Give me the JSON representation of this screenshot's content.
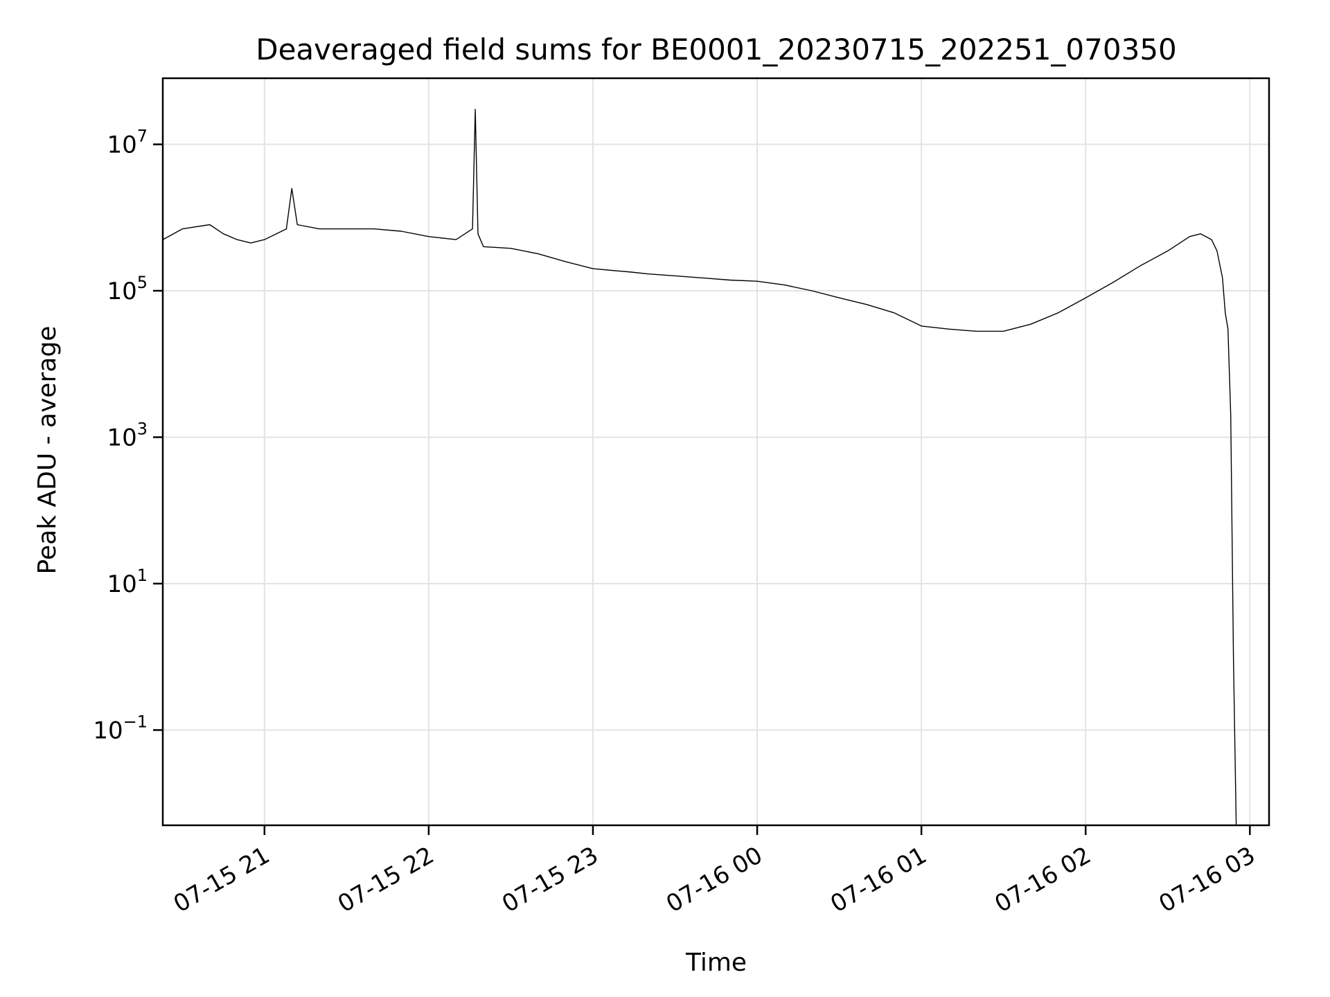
{
  "chart_data": {
    "type": "line",
    "title": "Deaveraged field sums for BE0001_20230715_202251_070350",
    "xlabel": "Time",
    "ylabel": "Peak ADU - average",
    "yscale": "log",
    "xlim": [
      "2023-07-15 20:22:51",
      "2023-07-16 03:07:00"
    ],
    "ylim": [
      0.005,
      80000000
    ],
    "grid": true,
    "legend": "none",
    "line_color": "#000000",
    "x_ticks": [
      {
        "value": "2023-07-15 21:00",
        "label": "07-15 21"
      },
      {
        "value": "2023-07-15 22:00",
        "label": "07-15 22"
      },
      {
        "value": "2023-07-15 23:00",
        "label": "07-15 23"
      },
      {
        "value": "2023-07-16 00:00",
        "label": "07-16 00"
      },
      {
        "value": "2023-07-16 01:00",
        "label": "07-16 01"
      },
      {
        "value": "2023-07-16 02:00",
        "label": "07-16 02"
      },
      {
        "value": "2023-07-16 03:00",
        "label": "07-16 03"
      }
    ],
    "y_ticks": [
      {
        "value": 0.1,
        "base": "10",
        "exp": "−1"
      },
      {
        "value": 10,
        "base": "10",
        "exp": "1"
      },
      {
        "value": 1000,
        "base": "10",
        "exp": "3"
      },
      {
        "value": 100000,
        "base": "10",
        "exp": "5"
      },
      {
        "value": 10000000,
        "base": "10",
        "exp": "7"
      }
    ],
    "series": [
      {
        "x": [
          "2023-07-15 20:22:51",
          "2023-07-15 20:30",
          "2023-07-15 20:40",
          "2023-07-15 20:45",
          "2023-07-15 20:50",
          "2023-07-15 20:55",
          "2023-07-15 21:00",
          "2023-07-15 21:08",
          "2023-07-15 21:10",
          "2023-07-15 21:12",
          "2023-07-15 21:20",
          "2023-07-15 21:30",
          "2023-07-15 21:40",
          "2023-07-15 21:50",
          "2023-07-15 22:00",
          "2023-07-15 22:10",
          "2023-07-15 22:16",
          "2023-07-15 22:17",
          "2023-07-15 22:18",
          "2023-07-15 22:20",
          "2023-07-15 22:30",
          "2023-07-15 22:40",
          "2023-07-15 22:50",
          "2023-07-15 23:00",
          "2023-07-15 23:14",
          "2023-07-15 23:20",
          "2023-07-15 23:30",
          "2023-07-15 23:40",
          "2023-07-15 23:50",
          "2023-07-16 00:00",
          "2023-07-16 00:10",
          "2023-07-16 00:20",
          "2023-07-16 00:30",
          "2023-07-16 00:40",
          "2023-07-16 00:50",
          "2023-07-16 01:00",
          "2023-07-16 01:10",
          "2023-07-16 01:20",
          "2023-07-16 01:30",
          "2023-07-16 01:40",
          "2023-07-16 01:50",
          "2023-07-16 02:00",
          "2023-07-16 02:10",
          "2023-07-16 02:20",
          "2023-07-16 02:30",
          "2023-07-16 02:38",
          "2023-07-16 02:42",
          "2023-07-16 02:46",
          "2023-07-16 02:48",
          "2023-07-16 02:50",
          "2023-07-16 02:51",
          "2023-07-16 02:52",
          "2023-07-16 02:53",
          "2023-07-16 02:54",
          "2023-07-16 02:55"
        ],
        "y": [
          500000,
          700000,
          800000,
          600000,
          500000,
          450000,
          500000,
          700000,
          2500000,
          800000,
          700000,
          700000,
          700000,
          650000,
          550000,
          500000,
          700000,
          30000000,
          600000,
          400000,
          380000,
          320000,
          250000,
          200000,
          180000,
          170000,
          160000,
          150000,
          140000,
          135000,
          120000,
          100000,
          80000,
          65000,
          50000,
          33000,
          30000,
          28000,
          28000,
          35000,
          50000,
          80000,
          130000,
          220000,
          350000,
          550000,
          600000,
          500000,
          350000,
          150000,
          50000,
          30000,
          2000,
          1,
          0.005
        ]
      }
    ]
  }
}
